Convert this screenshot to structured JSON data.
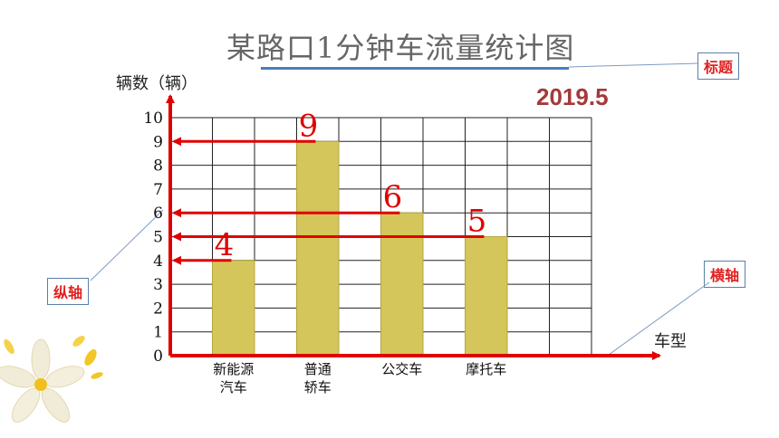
{
  "title": "某路口1分钟车流量统计图",
  "date": "2019.5",
  "chart_data": {
    "type": "bar",
    "title": "某路口1分钟车流量统计图",
    "ylabel": "辆数（辆）",
    "xlabel": "车型",
    "categories": [
      [
        "新能源",
        "汽车"
      ],
      [
        "普通",
        "轿车"
      ],
      [
        "公交车"
      ],
      [
        "摩托车"
      ]
    ],
    "values": [
      4,
      9,
      6,
      5
    ],
    "ylim": [
      0,
      10
    ],
    "yticks": [
      0,
      1,
      2,
      3,
      4,
      5,
      6,
      7,
      8,
      9,
      10
    ],
    "grid": true,
    "bar_color": "#d4c65a",
    "axis_color": "#e00000"
  },
  "value_labels": [
    "4",
    "9",
    "6",
    "5"
  ],
  "callouts": {
    "title_label": "标题",
    "x_axis_label": "横轴",
    "y_axis_label": "纵轴"
  },
  "colors": {
    "accent": "#e00000",
    "callout_border": "#5b7fa8",
    "title_underline": "#4a7ebb"
  }
}
